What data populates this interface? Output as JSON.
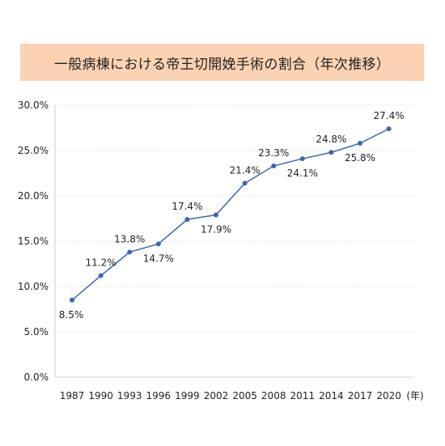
{
  "chart_data": {
    "type": "line",
    "title": "一般病棟における帝王切開娩手術の割合（年次推移）",
    "x_unit": "(年)",
    "categories": [
      "1987",
      "1990",
      "1993",
      "1996",
      "1999",
      "2002",
      "2005",
      "2008",
      "2011",
      "2014",
      "2017",
      "2020"
    ],
    "series": [
      {
        "values": [
          8.5,
          11.2,
          13.8,
          14.7,
          17.4,
          17.9,
          21.4,
          23.3,
          24.1,
          24.8,
          25.8,
          27.4
        ]
      }
    ],
    "data_labels": [
      "8.5%",
      "11.2%",
      "13.8%",
      "14.7%",
      "17.4%",
      "17.9%",
      "21.4%",
      "23.3%",
      "24.1%",
      "24.8%",
      "25.8%",
      "27.4%"
    ],
    "y_ticks": [
      "0.0%",
      "5.0%",
      "10.0%",
      "15.0%",
      "20.0%",
      "25.0%",
      "30.0%"
    ],
    "ylim": [
      0,
      30
    ],
    "grid": true,
    "line_color": "#3a68ad",
    "grid_color": "#e6e6e6"
  }
}
